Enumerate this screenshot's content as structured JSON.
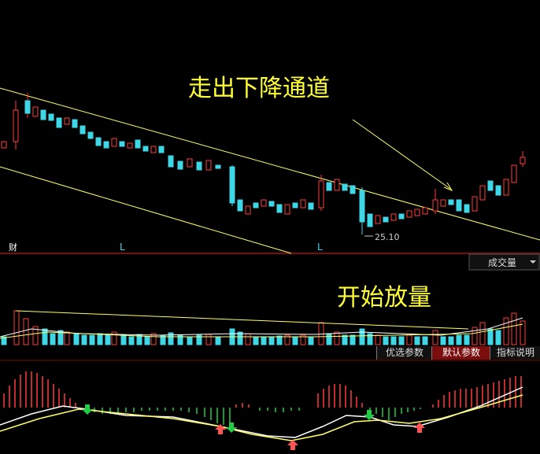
{
  "annotations": {
    "breakout": "走出下降通道",
    "volume_surge": "开始放量"
  },
  "price_panel": {
    "markers": [
      "财",
      "L",
      "L"
    ],
    "low_label": "25.10"
  },
  "volume_panel": {
    "dropdown": "成交量"
  },
  "indicator_tabs": [
    "优选参数",
    "默认参数",
    "指标说明"
  ]
}
